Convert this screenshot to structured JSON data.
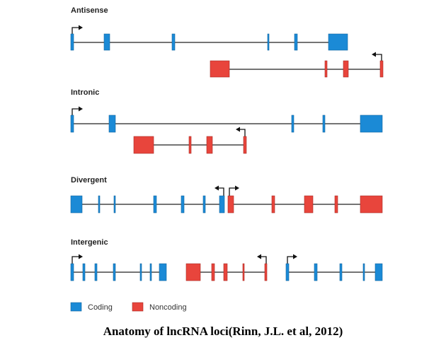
{
  "figure": {
    "caption": "Anatomy of lncRNA loci(Rinn, J.L. et al, 2012)",
    "colors": {
      "coding": "#1b8ad6",
      "coding_stroke": "#11669f",
      "noncoding": "#e8453c",
      "noncoding_stroke": "#a82a23",
      "intron_line": "#222222",
      "arrow": "#111111"
    },
    "sections": [
      {
        "key": "antisense",
        "label": "Antisense"
      },
      {
        "key": "intronic",
        "label": "Intronic"
      },
      {
        "key": "divergent",
        "label": "Divergent"
      },
      {
        "key": "intergenic",
        "label": "Intergenic"
      }
    ],
    "transcript_icons": {
      "antisense": [
        {
          "type": "coding",
          "strand": "forward"
        },
        {
          "type": "noncoding",
          "strand": "reverse"
        }
      ],
      "intronic": [
        {
          "type": "coding",
          "strand": "forward"
        },
        {
          "type": "noncoding",
          "strand": "reverse"
        }
      ],
      "divergent": [
        {
          "type": "coding",
          "strand": "reverse"
        },
        {
          "type": "noncoding",
          "strand": "forward"
        }
      ],
      "intergenic": [
        {
          "type": "coding",
          "strand": "forward"
        },
        {
          "type": "noncoding",
          "strand": "reverse"
        },
        {
          "type": "coding",
          "strand": "forward"
        }
      ]
    },
    "legend": [
      {
        "key": "coding",
        "label": "Coding"
      },
      {
        "key": "noncoding",
        "label": "Noncoding"
      }
    ]
  }
}
